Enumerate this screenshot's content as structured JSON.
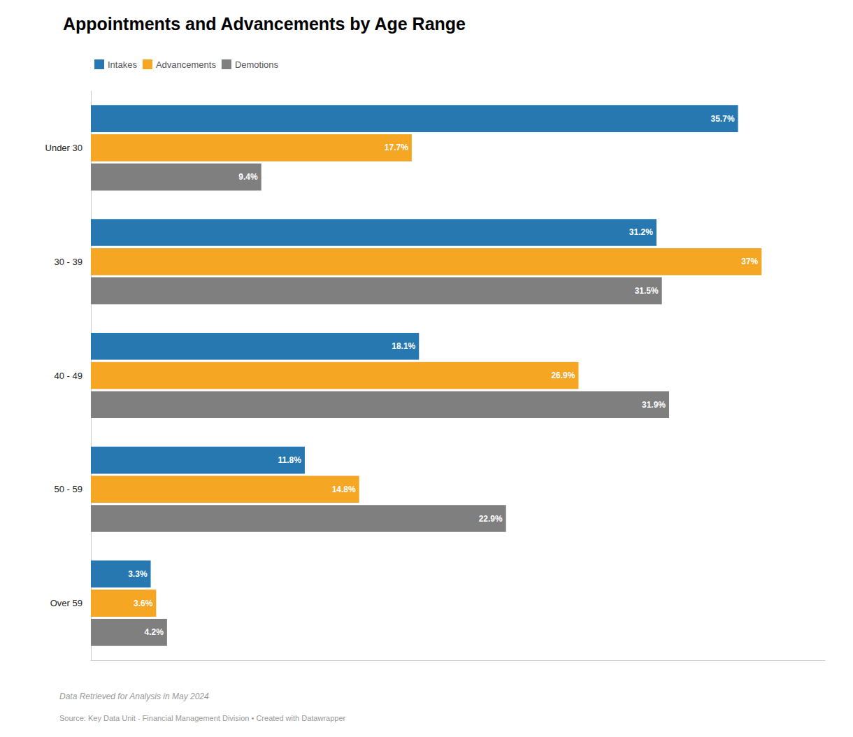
{
  "chart_data": {
    "type": "bar",
    "orientation": "horizontal",
    "title": "Appointments and Advancements by Age Range",
    "categories": [
      "Under 30",
      "30 - 39",
      "40 - 49",
      "50 - 59",
      "Over 59"
    ],
    "series": [
      {
        "name": "Intakes",
        "color": "#2778B0",
        "values": [
          35.7,
          31.2,
          18.1,
          11.8,
          3.3
        ],
        "value_labels": [
          "35.7%",
          "31.2%",
          "18.1%",
          "11.8%",
          "3.3%"
        ]
      },
      {
        "name": "Advancements",
        "color": "#F5A623",
        "values": [
          17.7,
          37.0,
          26.9,
          14.8,
          3.6
        ],
        "value_labels": [
          "17.7%",
          "37%",
          "26.9%",
          "14.8%",
          "3.6%"
        ]
      },
      {
        "name": "Demotions",
        "color": "#7F7F7F",
        "values": [
          9.4,
          31.5,
          31.9,
          22.9,
          4.2
        ],
        "value_labels": [
          "9.4%",
          "31.5%",
          "31.9%",
          "22.9%",
          "4.2%"
        ]
      }
    ],
    "xlim": [
      0,
      40.5
    ],
    "tick_labels": "y",
    "grid": false,
    "legend": "upper left",
    "data_labels": true,
    "annotations": [
      "Data Retrieved for Analysis in May 2024",
      "Source: Key Data Unit - Financial Management Division • Created with Datawrapper"
    ]
  }
}
